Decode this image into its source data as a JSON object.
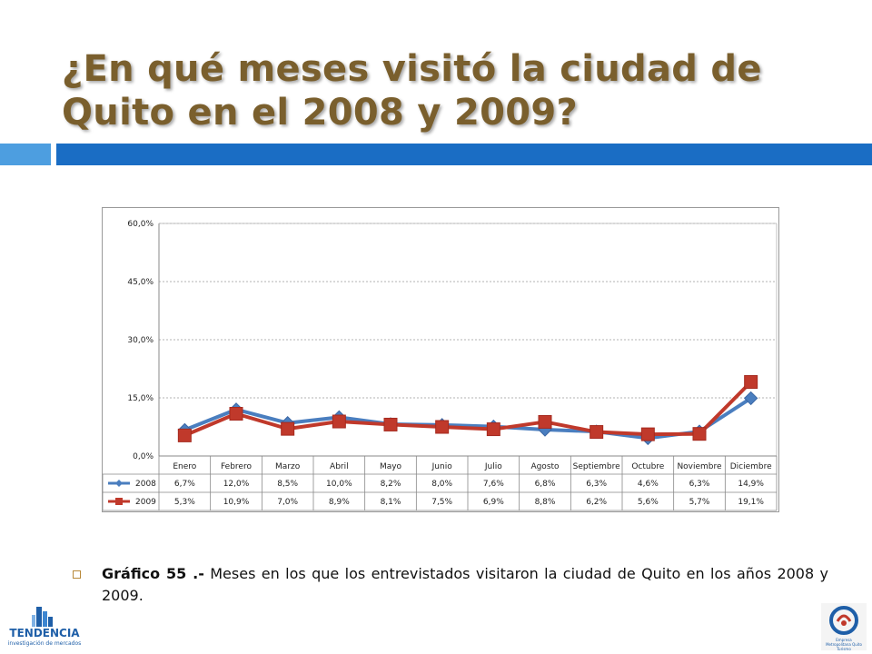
{
  "title": "¿En qué meses visitó la ciudad de Quito en el 2008 y 2009?",
  "caption": {
    "label": "Gráfico 55 .-",
    "text": " Meses en los que los entrevistados visitaron la ciudad de Quito en los años 2008 y 2009."
  },
  "logos": {
    "left_name": "TENDENCIA",
    "left_tag": "investigación de mercados",
    "right_text": "Empresa Metropolitana Quito Turismo"
  },
  "colors": {
    "title": "#7a5f2d",
    "bar_light": "#4d9ee0",
    "bar_dark": "#1a6dc4",
    "series_2008": "#4a7ebf",
    "series_2009": "#c0392b"
  },
  "chart_data": {
    "type": "line",
    "categories": [
      "Enero",
      "Febrero",
      "Marzo",
      "Abril",
      "Mayo",
      "Junio",
      "Julio",
      "Agosto",
      "Septiembre",
      "Octubre",
      "Noviembre",
      "Diciembre"
    ],
    "series": [
      {
        "name": "2008",
        "values": [
          6.7,
          12.0,
          8.5,
          10.0,
          8.2,
          8.0,
          7.6,
          6.8,
          6.3,
          4.6,
          6.3,
          14.9
        ],
        "labels": [
          "6,7%",
          "12,0%",
          "8,5%",
          "10,0%",
          "8,2%",
          "8,0%",
          "7,6%",
          "6,8%",
          "6,3%",
          "4,6%",
          "6,3%",
          "14,9%"
        ],
        "marker": "diamond"
      },
      {
        "name": "2009",
        "values": [
          5.3,
          10.9,
          7.0,
          8.9,
          8.1,
          7.5,
          6.9,
          8.8,
          6.2,
          5.6,
          5.7,
          19.1
        ],
        "labels": [
          "5,3%",
          "10,9%",
          "7,0%",
          "8,9%",
          "8,1%",
          "7,5%",
          "6,9%",
          "8,8%",
          "6,2%",
          "5,6%",
          "5,7%",
          "19,1%"
        ],
        "marker": "square"
      }
    ],
    "ylim": [
      0,
      60
    ],
    "yticks": [
      0,
      15,
      30,
      45,
      60
    ],
    "ytick_labels": [
      "0,0%",
      "15,0%",
      "30,0%",
      "45,0%",
      "60,0%"
    ],
    "grid": true,
    "legend": "data-table",
    "title": "",
    "xlabel": "",
    "ylabel": ""
  }
}
